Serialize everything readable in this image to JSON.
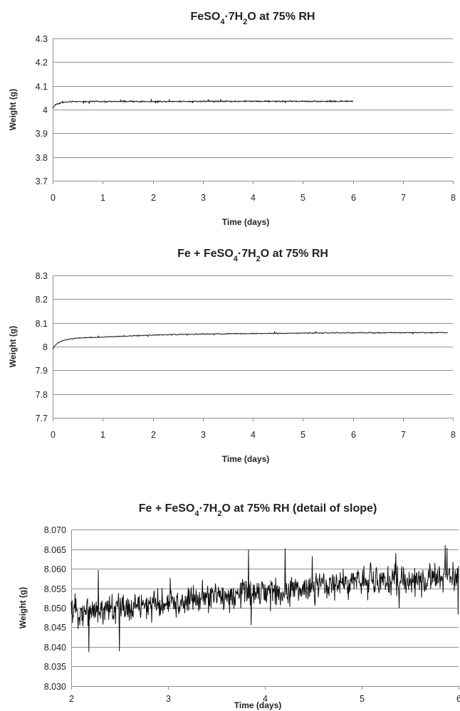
{
  "chart_data": [
    {
      "type": "line",
      "title_parts": {
        "a": "FeSO",
        "sub1": "4",
        "b": "·7H",
        "sub2": "2",
        "c": "O at 75% RH"
      },
      "xlabel": "Time (days)",
      "ylabel": "Weight (g)",
      "xlim": [
        0,
        8
      ],
      "ylim": [
        3.7,
        4.3
      ],
      "xticks": [
        "0",
        "1",
        "2",
        "3",
        "4",
        "5",
        "6",
        "7",
        "8"
      ],
      "yticks": [
        "3.7",
        "3.8",
        "3.9",
        "4",
        "4.1",
        "4.2",
        "4.3"
      ],
      "grid": true,
      "series": [
        {
          "x": [
            0,
            0.05,
            0.1,
            0.2,
            0.35,
            0.5,
            1,
            2,
            3,
            4,
            5,
            6
          ],
          "y": [
            4.005,
            4.02,
            4.025,
            4.03,
            4.033,
            4.034,
            4.034,
            4.034,
            4.035,
            4.035,
            4.035,
            4.035
          ],
          "noise": 0.004
        }
      ]
    },
    {
      "type": "line",
      "title_parts": {
        "a": "Fe + FeSO",
        "sub1": "4",
        "b": "·7H",
        "sub2": "2",
        "c": "O at 75% RH"
      },
      "xlabel": "Time (days)",
      "ylabel": "Weight (g)",
      "xlim": [
        0,
        8
      ],
      "ylim": [
        7.7,
        8.3
      ],
      "xticks": [
        "0",
        "1",
        "2",
        "3",
        "4",
        "5",
        "6",
        "7",
        "8"
      ],
      "yticks": [
        "7.7",
        "7.8",
        "7.9",
        "8",
        "8.1",
        "8.2",
        "8.3"
      ],
      "grid": true,
      "series": [
        {
          "x": [
            0,
            0.05,
            0.1,
            0.2,
            0.35,
            0.5,
            1,
            2,
            3,
            4,
            5,
            6,
            7,
            7.9
          ],
          "y": [
            7.99,
            8.005,
            8.015,
            8.025,
            8.032,
            8.036,
            8.04,
            8.049,
            8.053,
            8.055,
            8.057,
            8.058,
            8.059,
            8.059
          ],
          "noise": 0.003
        }
      ]
    },
    {
      "type": "line",
      "title_parts": {
        "a": "Fe + FeSO",
        "sub1": "4",
        "b": "·7H",
        "sub2": "2",
        "c": "O at 75% RH (detail of slope)"
      },
      "xlabel": "Time (days)",
      "ylabel": "Weight (g)",
      "xlim": [
        2,
        6
      ],
      "ylim": [
        8.03,
        8.07
      ],
      "xticks": [
        "2",
        "3",
        "4",
        "5",
        "6"
      ],
      "yticks": [
        "8.030",
        "8.035",
        "8.040",
        "8.045",
        "8.050",
        "8.055",
        "8.060",
        "8.065",
        "8.070"
      ],
      "grid": true,
      "series": [
        {
          "x": [
            2,
            2.5,
            3,
            3.5,
            4,
            4.5,
            5,
            5.5,
            6
          ],
          "y": [
            8.049,
            8.05,
            8.051,
            8.053,
            8.054,
            8.055,
            8.057,
            8.057,
            8.058
          ],
          "noise": 0.0055
        }
      ]
    }
  ]
}
